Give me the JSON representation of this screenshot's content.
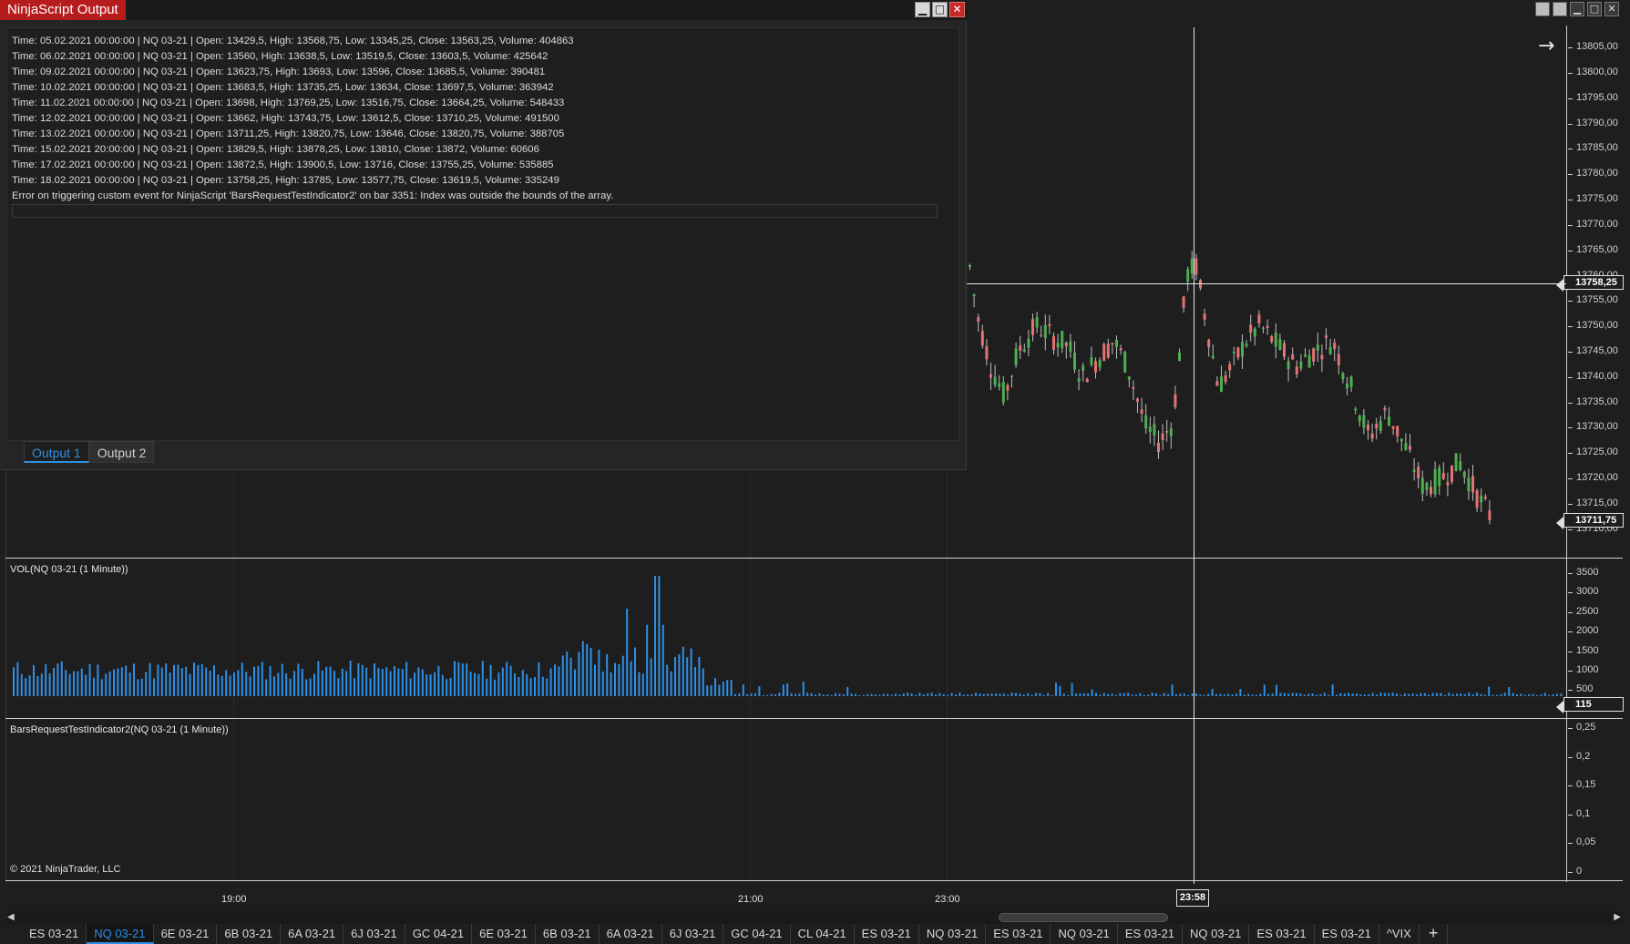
{
  "output_window": {
    "title": "NinjaScript Output",
    "lines": [
      "Time: 05.02.2021 00:00:00 | NQ 03-21 | Open: 13429,5, High: 13568,75, Low: 13345,25, Close: 13563,25, Volume: 404863",
      "Time: 06.02.2021 00:00:00 | NQ 03-21 | Open: 13560, High: 13638,5, Low: 13519,5, Close: 13603,5, Volume: 425642",
      "Time: 09.02.2021 00:00:00 | NQ 03-21 | Open: 13623,75, High: 13693, Low: 13596, Close: 13685,5, Volume: 390481",
      "Time: 10.02.2021 00:00:00 | NQ 03-21 | Open: 13683,5, High: 13735,25, Low: 13634, Close: 13697,5, Volume: 363942",
      "Time: 11.02.2021 00:00:00 | NQ 03-21 | Open: 13698, High: 13769,25, Low: 13516,75, Close: 13664,25, Volume: 548433",
      "Time: 12.02.2021 00:00:00 | NQ 03-21 | Open: 13662, High: 13743,75, Low: 13612,5, Close: 13710,25, Volume: 491500",
      "Time: 13.02.2021 00:00:00 | NQ 03-21 | Open: 13711,25, High: 13820,75, Low: 13646, Close: 13820,75, Volume: 388705",
      "Time: 15.02.2021 20:00:00 | NQ 03-21 | Open: 13829,5, High: 13878,25, Low: 13810, Close: 13872, Volume: 60606",
      "Time: 17.02.2021 00:00:00 | NQ 03-21 | Open: 13872,5, High: 13900,5, Low: 13716, Close: 13755,25, Volume: 535885",
      "Time: 18.02.2021 00:00:00 | NQ 03-21 | Open: 13758,25, High: 13785, Low: 13577,75, Close: 13619,5, Volume: 335249",
      "Error on triggering custom event for NinjaScript 'BarsRequestTestIndicator2' on bar 3351: Index was outside the bounds of the array."
    ],
    "tabs": [
      "Output 1",
      "Output 2"
    ],
    "active_tab": "Output 1",
    "controls": {
      "minimize": "▁",
      "maximize": "□",
      "close": "✕"
    }
  },
  "chart": {
    "window_controls": {
      "btn1": "",
      "btn2": "",
      "minimize": "▁",
      "maximize": "□",
      "close": "✕"
    },
    "arrow_icon": "→",
    "price_axis": [
      "13805,00",
      "13800,00",
      "13795,00",
      "13790,00",
      "13785,00",
      "13780,00",
      "13775,00",
      "13770,00",
      "13765,00",
      "13760,00",
      "13755,00",
      "13750,00",
      "13745,00",
      "13740,00",
      "13735,00",
      "13730,00",
      "13725,00",
      "13720,00",
      "13715,00",
      "13710,00"
    ],
    "crosshair_price": "13758,25",
    "last_price": "13711,75",
    "volume_panel": {
      "title": "VOL(NQ 03-21 (1 Minute))",
      "axis": [
        "3500",
        "3000",
        "2500",
        "2000",
        "1500",
        "1000",
        "500"
      ],
      "last_value": "115"
    },
    "indicator_panel": {
      "title": "BarsRequestTestIndicator2(NQ 03-21 (1 Minute))",
      "axis": [
        "0,25",
        "0,2",
        "0,15",
        "0,1",
        "0,05",
        "0"
      ]
    },
    "copyright": "© 2021 NinjaTrader, LLC",
    "time_axis": [
      "19:00",
      "21:00",
      "23:00"
    ],
    "crosshair_time": "23:58",
    "colors": {
      "up": "#4caf50",
      "down": "#e57373",
      "volume": "#2e8fe6",
      "background": "#1e1e1e"
    }
  },
  "instrument_tabs": [
    "ES 03-21",
    "NQ 03-21",
    "6E 03-21",
    "6B 03-21",
    "6A 03-21",
    "6J 03-21",
    "GC 04-21",
    "6E 03-21",
    "6B 03-21",
    "6A 03-21",
    "6J 03-21",
    "GC 04-21",
    "CL 04-21",
    "ES 03-21",
    "NQ 03-21",
    "ES 03-21",
    "NQ 03-21",
    "ES 03-21",
    "NQ 03-21",
    "ES 03-21",
    "ES 03-21",
    "^VIX"
  ],
  "active_instrument_tab": 1,
  "add_tab_label": "+"
}
